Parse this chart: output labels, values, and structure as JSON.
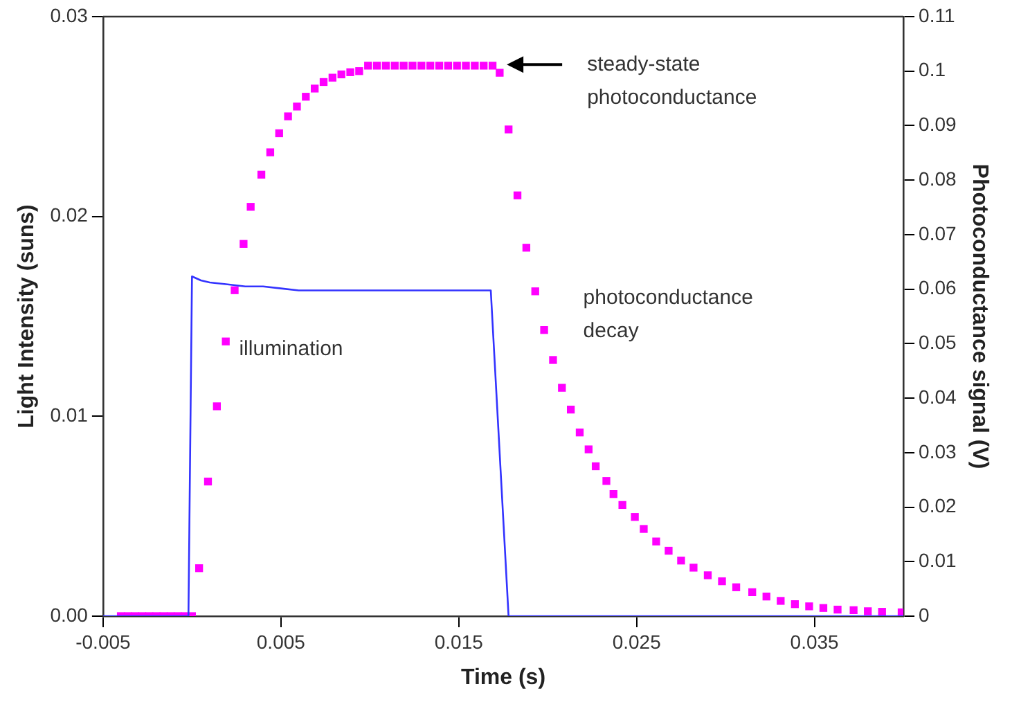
{
  "chart_data": {
    "type": "line",
    "xlabel": "Time (s)",
    "ylabel": "Light Intensity (suns)",
    "y2label": "Photoconductance signal (V)",
    "xlim": [
      -0.005,
      0.04
    ],
    "xticks": [
      -0.005,
      0.005,
      0.015,
      0.025,
      0.035
    ],
    "ylim": [
      0,
      0.03
    ],
    "yticks": [
      {
        "value": 0,
        "label": "0.00"
      },
      {
        "value": 0.01,
        "label": "0.01"
      },
      {
        "value": 0.02,
        "label": "0.02"
      },
      {
        "value": 0.03,
        "label": "0.03"
      }
    ],
    "y2lim": [
      0,
      0.11
    ],
    "y2ticks": [
      0,
      0.01,
      0.02,
      0.03,
      0.04,
      0.05,
      0.06,
      0.07,
      0.08,
      0.09,
      0.1,
      0.11
    ],
    "grid": false,
    "legend": false,
    "series": [
      {
        "type": "line",
        "color": "#3333ff",
        "marker": "none",
        "x": [
          -0.005,
          -0.0002,
          0,
          0.0005,
          0.001,
          0.002,
          0.003,
          0.004,
          0.005,
          0.006,
          0.01,
          0.0168,
          0.0178,
          0.04
        ],
        "values": [
          0,
          0,
          0.017,
          0.0168,
          0.0167,
          0.0166,
          0.0165,
          0.0165,
          0.0164,
          0.0163,
          0.0163,
          0.0163,
          0,
          0
        ]
      },
      {
        "type": "scatter",
        "axis": "y2",
        "color": "#ff00ff",
        "marker": "square",
        "x": [
          -0.004,
          -0.0036,
          -0.0032,
          -0.0028,
          -0.0024,
          -0.002,
          -0.0016,
          -0.0012,
          -0.0008,
          -0.0004,
          0,
          0.0004,
          0.0009,
          0.0014,
          0.0019,
          0.0024,
          0.0029,
          0.0033,
          0.0039,
          0.0044,
          0.0049,
          0.0054,
          0.0059,
          0.0064,
          0.0069,
          0.0074,
          0.0079,
          0.0084,
          0.0089,
          0.0094,
          0.0099,
          0.0104,
          0.0109,
          0.0114,
          0.0119,
          0.0124,
          0.0129,
          0.0134,
          0.0139,
          0.0144,
          0.0149,
          0.0154,
          0.0159,
          0.0164,
          0.0169,
          0.0173,
          0.0178,
          0.0183,
          0.0188,
          0.0193,
          0.0198,
          0.0203,
          0.0208,
          0.0213,
          0.0218,
          0.0223,
          0.0227,
          0.0233,
          0.0237,
          0.0242,
          0.0249,
          0.0254,
          0.0261,
          0.0268,
          0.0275,
          0.0282,
          0.029,
          0.0298,
          0.0306,
          0.0315,
          0.0323,
          0.0331,
          0.0339,
          0.0347,
          0.0355,
          0.0363,
          0.0372,
          0.038,
          0.0388,
          0.0399
        ],
        "values": [
          0,
          0,
          0,
          0,
          0,
          0,
          0,
          0,
          0,
          0,
          0,
          0.0088,
          0.0247,
          0.0385,
          0.0504,
          0.0598,
          0.0683,
          0.0751,
          0.081,
          0.0851,
          0.0886,
          0.0917,
          0.0935,
          0.0953,
          0.0968,
          0.098,
          0.0988,
          0.0994,
          0.0998,
          0.1,
          0.101,
          0.101,
          0.101,
          0.101,
          0.101,
          0.101,
          0.101,
          0.101,
          0.101,
          0.101,
          0.101,
          0.101,
          0.101,
          0.101,
          0.101,
          0.0997,
          0.0893,
          0.0772,
          0.0676,
          0.0596,
          0.0525,
          0.047,
          0.0419,
          0.0379,
          0.0337,
          0.0306,
          0.0275,
          0.0248,
          0.0224,
          0.0204,
          0.0182,
          0.016,
          0.0137,
          0.012,
          0.0102,
          0.0089,
          0.0075,
          0.0064,
          0.0053,
          0.0044,
          0.0036,
          0.0028,
          0.0022,
          0.0018,
          0.0015,
          0.0012,
          0.0011,
          0.0009,
          0.0008,
          0.0007
        ]
      }
    ],
    "annotations": [
      {
        "text": "steady-state\nphotoconductance",
        "x": 0.0177,
        "y": 0.0276
      },
      "illumination",
      "photoconductance\ndecay"
    ]
  }
}
